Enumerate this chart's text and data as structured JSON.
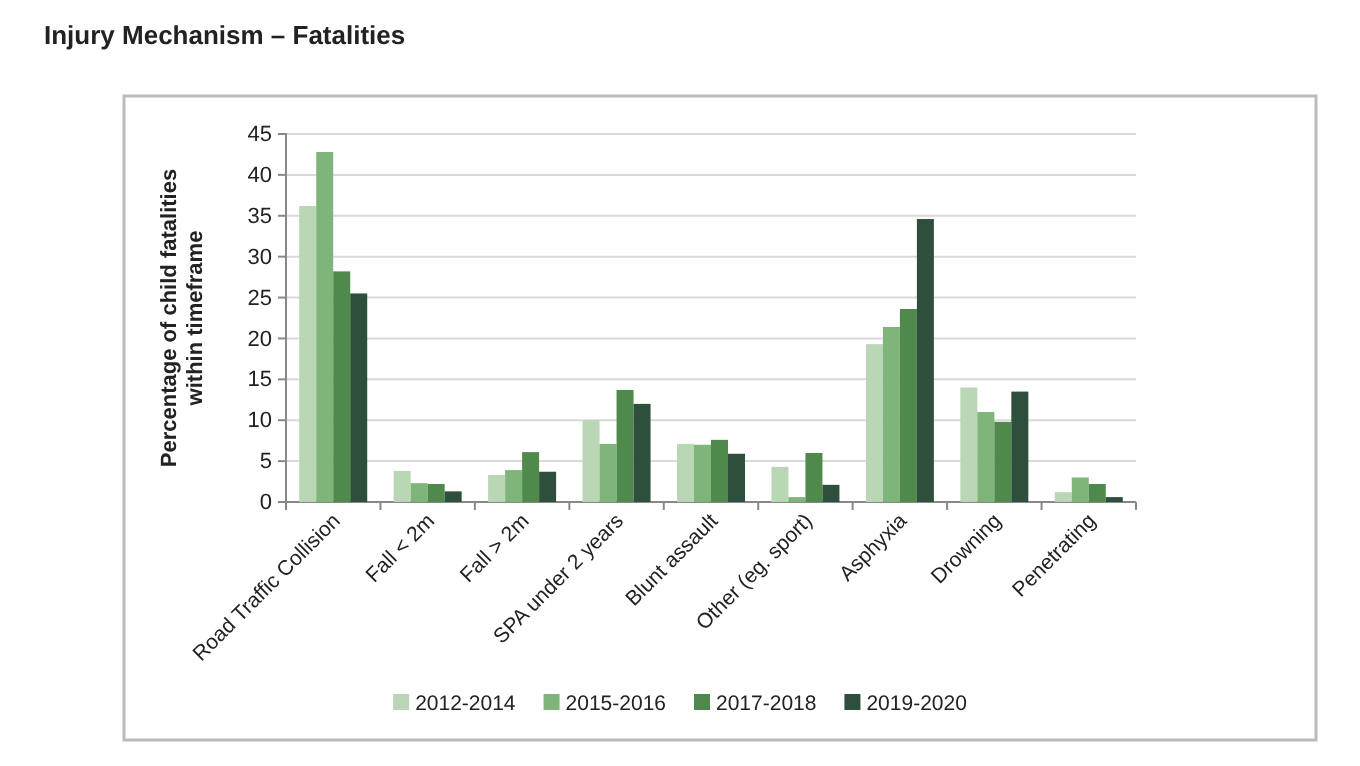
{
  "chart_data": {
    "type": "bar",
    "title": "Injury Mechanism – Fatalities",
    "ylabel": "Percentage of child fatalities within timeframe",
    "categories": [
      "Road Traffic Collision",
      "Fall < 2m",
      "Fall > 2m",
      "SPA under 2 years",
      "Blunt assault",
      "Other (eg. sport)",
      "Asphyxia",
      "Drowning",
      "Penetrating"
    ],
    "series": [
      {
        "name": "2012-2014",
        "color": "#b9d7b5",
        "values": [
          36.2,
          3.8,
          3.3,
          10.0,
          7.1,
          4.3,
          19.3,
          14.0,
          1.2
        ]
      },
      {
        "name": "2015-2016",
        "color": "#7fb47a",
        "values": [
          42.8,
          2.3,
          3.9,
          7.1,
          7.0,
          0.6,
          21.4,
          11.0,
          3.0
        ]
      },
      {
        "name": "2017-2018",
        "color": "#4f8a4c",
        "values": [
          28.2,
          2.2,
          6.1,
          13.7,
          7.6,
          6.0,
          23.6,
          9.8,
          2.2
        ]
      },
      {
        "name": "2019-2020",
        "color": "#2f4f3d",
        "values": [
          25.5,
          1.3,
          3.7,
          12.0,
          5.9,
          2.1,
          34.6,
          13.5,
          0.6
        ]
      }
    ],
    "ylim": [
      0,
      45
    ],
    "yticks": [
      0,
      5,
      10,
      15,
      20,
      25,
      30,
      35,
      40,
      45
    ],
    "grid": "y",
    "legend": "bottom"
  }
}
